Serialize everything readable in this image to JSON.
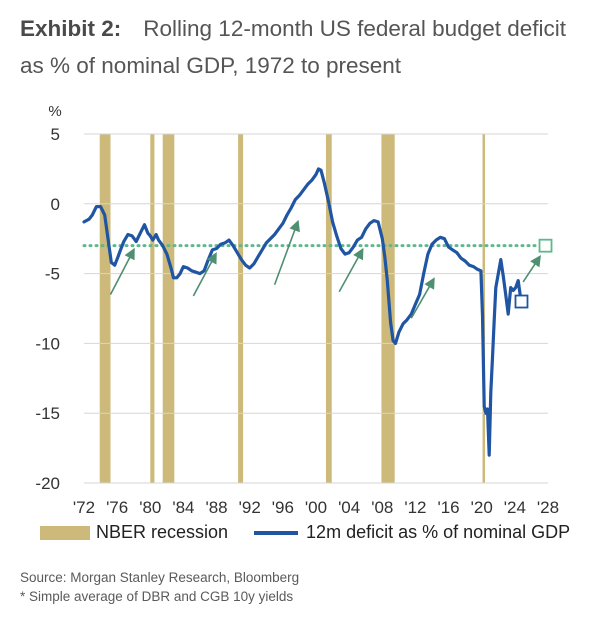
{
  "header": {
    "exhibit": "Exhibit 2:",
    "title": "Rolling 12-month US federal budget deficit as % of nominal GDP, 1972 to present"
  },
  "footer": {
    "source": "Source: Morgan Stanley Research, Bloomberg",
    "note": "* Simple average of DBR and CGB 10y yields"
  },
  "chart_data": {
    "type": "line",
    "y_unit_label": "%",
    "xlim": [
      1972,
      2028
    ],
    "ylim": [
      -20,
      5
    ],
    "x_ticks": [
      {
        "value": 1972,
        "label": "'72"
      },
      {
        "value": 1976,
        "label": "'76"
      },
      {
        "value": 1980,
        "label": "'80"
      },
      {
        "value": 1984,
        "label": "'84"
      },
      {
        "value": 1988,
        "label": "'88"
      },
      {
        "value": 1992,
        "label": "'92"
      },
      {
        "value": 1996,
        "label": "'96"
      },
      {
        "value": 2000,
        "label": "'00"
      },
      {
        "value": 2004,
        "label": "'04"
      },
      {
        "value": 2008,
        "label": "'08"
      },
      {
        "value": 2012,
        "label": "'12"
      },
      {
        "value": 2016,
        "label": "'16"
      },
      {
        "value": 2020,
        "label": "'20"
      },
      {
        "value": 2024,
        "label": "'24"
      },
      {
        "value": 2028,
        "label": "'28"
      }
    ],
    "y_ticks": [
      {
        "value": 5,
        "label": "5"
      },
      {
        "value": 0,
        "label": "0"
      },
      {
        "value": -5,
        "label": "-5"
      },
      {
        "value": -10,
        "label": "-10"
      },
      {
        "value": -15,
        "label": "-15"
      },
      {
        "value": -20,
        "label": "-20"
      }
    ],
    "grid": "horizontal",
    "legend": [
      {
        "name": "NBER recession",
        "kind": "band",
        "color": "#cdb979"
      },
      {
        "name": "12m deficit as % of nominal GDP",
        "kind": "line",
        "color": "#1f55a3"
      }
    ],
    "colors": {
      "recession": "#cdb979",
      "line": "#1f55a3",
      "reference": "#5db88e",
      "arrow": "#4f8f72",
      "grid": "#d6d6d6"
    },
    "recessions": [
      [
        1973.9,
        1975.2
      ],
      [
        1980.0,
        1980.5
      ],
      [
        1981.5,
        1982.9
      ],
      [
        1990.6,
        1991.2
      ],
      [
        2001.2,
        2001.9
      ],
      [
        2007.9,
        2009.5
      ],
      [
        2020.1,
        2020.4
      ]
    ],
    "reference_line": {
      "y": -3.0,
      "style": "dotted"
    },
    "markers": [
      {
        "x": 2024.8,
        "y": -7.0,
        "shape": "square"
      },
      {
        "x": 2027.7,
        "y": -3.0,
        "shape": "square"
      }
    ],
    "arrows": [
      {
        "from": [
          1975.2,
          -6.5
        ],
        "to": [
          1978.0,
          -3.3
        ]
      },
      {
        "from": [
          1985.2,
          -6.6
        ],
        "to": [
          1987.9,
          -3.6
        ]
      },
      {
        "from": [
          1995.0,
          -5.8
        ],
        "to": [
          1997.8,
          -1.3
        ]
      },
      {
        "from": [
          2002.8,
          -6.3
        ],
        "to": [
          2005.6,
          -3.3
        ]
      },
      {
        "from": [
          2011.5,
          -8.2
        ],
        "to": [
          2014.2,
          -5.4
        ]
      },
      {
        "from": [
          2025.0,
          -5.6
        ],
        "to": [
          2027.0,
          -3.8
        ]
      }
    ],
    "series": [
      {
        "name": "12m deficit as % of nominal GDP",
        "x": [
          1972.0,
          1972.6,
          1973.0,
          1973.5,
          1974.0,
          1974.5,
          1974.9,
          1975.3,
          1975.7,
          1976.1,
          1976.4,
          1976.8,
          1977.3,
          1977.8,
          1978.3,
          1978.8,
          1979.3,
          1979.7,
          1980.0,
          1980.3,
          1980.7,
          1981.0,
          1981.5,
          1982.0,
          1982.5,
          1982.8,
          1983.2,
          1983.6,
          1984.0,
          1984.5,
          1985.0,
          1985.5,
          1986.0,
          1986.5,
          1987.0,
          1987.5,
          1988.0,
          1988.5,
          1989.0,
          1989.5,
          1990.0,
          1990.5,
          1991.0,
          1991.5,
          1992.0,
          1992.5,
          1993.0,
          1993.5,
          1994.0,
          1994.5,
          1995.0,
          1995.5,
          1996.0,
          1996.5,
          1997.0,
          1997.5,
          1998.0,
          1998.5,
          1999.0,
          1999.5,
          2000.0,
          2000.3,
          2000.6,
          2001.0,
          2001.5,
          2002.0,
          2002.5,
          2003.0,
          2003.5,
          2004.0,
          2004.5,
          2005.0,
          2005.5,
          2006.0,
          2006.5,
          2007.0,
          2007.5,
          2008.0,
          2008.3,
          2008.6,
          2009.0,
          2009.3,
          2009.6,
          2010.0,
          2010.5,
          2011.0,
          2011.5,
          2012.0,
          2012.5,
          2013.0,
          2013.5,
          2014.0,
          2014.5,
          2015.0,
          2015.5,
          2016.0,
          2016.5,
          2017.0,
          2017.5,
          2018.0,
          2018.5,
          2019.0,
          2019.5,
          2019.9,
          2020.1,
          2020.3,
          2020.5,
          2020.7,
          2020.9,
          2021.1,
          2021.3,
          2021.5,
          2021.7,
          2022.0,
          2022.3,
          2022.6,
          2022.9,
          2023.2,
          2023.5,
          2023.8,
          2024.1,
          2024.4,
          2024.7
        ],
        "values": [
          -1.3,
          -1.1,
          -0.8,
          -0.2,
          -0.2,
          -0.8,
          -2.5,
          -4.2,
          -4.4,
          -3.8,
          -3.3,
          -2.7,
          -2.2,
          -2.3,
          -2.7,
          -2.1,
          -1.5,
          -2.1,
          -2.3,
          -2.6,
          -2.2,
          -2.6,
          -3.0,
          -3.6,
          -4.6,
          -5.3,
          -5.3,
          -5.0,
          -4.5,
          -4.6,
          -4.8,
          -4.9,
          -5.0,
          -4.8,
          -4.0,
          -3.3,
          -3.2,
          -2.9,
          -2.8,
          -2.6,
          -3.0,
          -3.5,
          -4.0,
          -4.4,
          -4.6,
          -4.3,
          -3.8,
          -3.3,
          -2.8,
          -2.5,
          -2.2,
          -1.8,
          -1.4,
          -0.8,
          -0.3,
          0.3,
          0.6,
          1.0,
          1.4,
          1.7,
          2.1,
          2.5,
          2.4,
          1.5,
          0.2,
          -1.3,
          -2.3,
          -3.2,
          -3.6,
          -3.5,
          -3.1,
          -2.6,
          -2.4,
          -1.8,
          -1.4,
          -1.2,
          -1.3,
          -2.5,
          -3.8,
          -5.5,
          -8.5,
          -9.8,
          -10.0,
          -9.2,
          -8.6,
          -8.3,
          -7.9,
          -7.2,
          -6.5,
          -5.0,
          -3.6,
          -2.9,
          -2.6,
          -2.4,
          -2.5,
          -3.1,
          -3.3,
          -3.5,
          -3.9,
          -4.1,
          -4.4,
          -4.5,
          -4.7,
          -4.8,
          -8.0,
          -14.5,
          -15.0,
          -14.7,
          -18.0,
          -13.5,
          -11.0,
          -8.5,
          -6.0,
          -5.0,
          -4.0,
          -5.2,
          -6.5,
          -7.9,
          -6.0,
          -6.2,
          -6.0,
          -5.5,
          -6.8
        ]
      }
    ]
  }
}
